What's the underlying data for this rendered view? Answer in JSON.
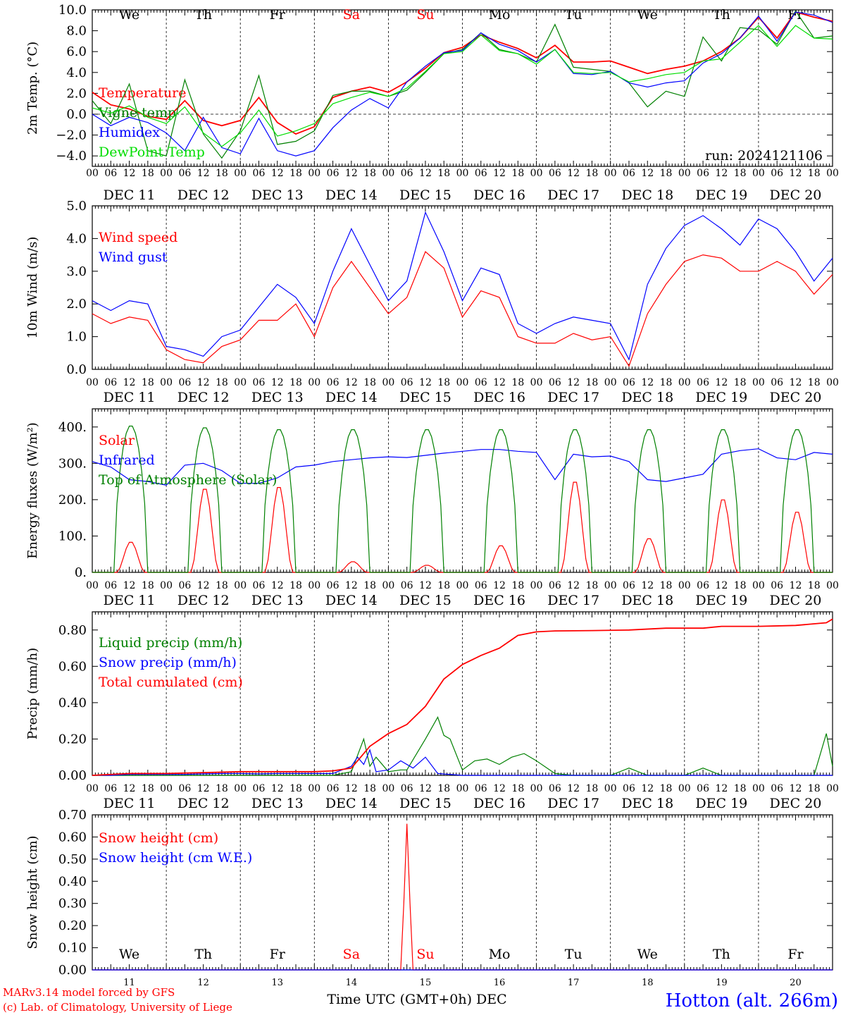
{
  "run_label": "run: 2024121106",
  "footer": {
    "model": "MARv3.14 model forced by GFS",
    "lab": "(c) Lab. of Climatology, University of Liege",
    "xlabel": "Time UTC (GMT+0h) DEC",
    "station": "Hotton (alt. 266m)"
  },
  "days": [
    {
      "dow": "We",
      "date": "DEC 11",
      "num": "11",
      "weekend": false
    },
    {
      "dow": "Th",
      "date": "DEC 12",
      "num": "12",
      "weekend": false
    },
    {
      "dow": "Fr",
      "date": "DEC 13",
      "num": "13",
      "weekend": false
    },
    {
      "dow": "Sa",
      "date": "DEC 14",
      "num": "14",
      "weekend": true
    },
    {
      "dow": "Su",
      "date": "DEC 15",
      "num": "15",
      "weekend": true
    },
    {
      "dow": "Mo",
      "date": "DEC 16",
      "num": "16",
      "weekend": false
    },
    {
      "dow": "Tu",
      "date": "DEC 17",
      "num": "17",
      "weekend": false
    },
    {
      "dow": "We",
      "date": "DEC 18",
      "num": "18",
      "weekend": false
    },
    {
      "dow": "Th",
      "date": "DEC 19",
      "num": "19",
      "weekend": false
    },
    {
      "dow": "Fr",
      "date": "DEC 20",
      "num": "20",
      "weekend": false
    }
  ],
  "hour_labels": [
    "00",
    "06",
    "12",
    "18"
  ],
  "last_hour_label": "00",
  "colors": {
    "red": "#ff0000",
    "green": "#008000",
    "blue": "#0000ff",
    "lightgreen": "#00dd00",
    "weekend": "#ff0000",
    "station": "#0000ff",
    "footer": "#ff0000"
  },
  "chart_data": [
    {
      "type": "line",
      "ylabel": "2m Temp. (°C)",
      "ylim": [
        -5,
        10
      ],
      "yticks": [
        -4,
        -2,
        0,
        2,
        4,
        6,
        8,
        10
      ],
      "ytick_labels": [
        "−4.0",
        "−2.0",
        "0.0",
        "2.0",
        "4.0",
        "6.0",
        "8.0",
        "10.0"
      ],
      "zero_line": true,
      "x_unit": "hours since DEC 11 00 UTC",
      "series": [
        {
          "name": "Temperature",
          "color": "#ff0000",
          "x": [
            0,
            6,
            12,
            18,
            24,
            30,
            36,
            42,
            48,
            54,
            60,
            66,
            72,
            78,
            84,
            90,
            96,
            102,
            108,
            114,
            120,
            126,
            132,
            138,
            144,
            150,
            156,
            162,
            168,
            174,
            180,
            186,
            192,
            198,
            204,
            210,
            216,
            222,
            228,
            234,
            240
          ],
          "y": [
            2.1,
            0.9,
            0.5,
            -0.2,
            -0.5,
            1.3,
            -0.6,
            -1.1,
            -0.6,
            1.6,
            -0.8,
            -1.9,
            -1.2,
            1.6,
            2.2,
            2.6,
            2.1,
            3.1,
            4.4,
            5.9,
            6.4,
            7.6,
            6.9,
            6.3,
            5.4,
            6.6,
            5.0,
            5.0,
            5.1,
            4.5,
            3.9,
            4.3,
            4.6,
            5.1,
            6.0,
            7.3,
            9.3,
            7.3,
            9.8,
            9.3,
            8.9
          ]
        },
        {
          "name": "Vigne temp",
          "color": "#008000",
          "x": [
            0,
            6,
            12,
            18,
            24,
            30,
            36,
            42,
            48,
            54,
            60,
            66,
            72,
            78,
            84,
            90,
            96,
            102,
            108,
            114,
            120,
            126,
            132,
            138,
            144,
            150,
            156,
            162,
            168,
            174,
            180,
            186,
            192,
            198,
            204,
            210,
            216,
            222,
            228,
            234,
            240
          ],
          "y": [
            1.3,
            -0.9,
            2.9,
            -3.5,
            -4.0,
            3.3,
            -1.9,
            -4.2,
            -1.6,
            3.7,
            -2.9,
            -2.6,
            -1.6,
            1.8,
            2.2,
            2.2,
            1.7,
            2.3,
            4.0,
            5.8,
            6.2,
            7.8,
            6.2,
            5.8,
            5.0,
            8.6,
            4.5,
            4.3,
            4.1,
            3.0,
            0.7,
            2.2,
            1.7,
            7.4,
            5.1,
            8.3,
            8.1,
            6.7,
            9.9,
            7.3,
            7.5
          ]
        },
        {
          "name": "Humidex",
          "color": "#0000ff",
          "x": [
            0,
            6,
            12,
            18,
            24,
            30,
            36,
            42,
            48,
            54,
            60,
            66,
            72,
            78,
            84,
            90,
            96,
            102,
            108,
            114,
            120,
            126,
            132,
            138,
            144,
            150,
            156,
            162,
            168,
            174,
            180,
            186,
            192,
            198,
            204,
            210,
            216,
            222,
            228,
            234,
            240
          ],
          "y": [
            0.0,
            -1.1,
            -0.3,
            -0.8,
            -1.8,
            -3.5,
            -0.3,
            -3.2,
            -3.8,
            -0.4,
            -3.5,
            -4.0,
            -3.5,
            -1.3,
            0.4,
            1.5,
            0.6,
            3.1,
            4.6,
            5.9,
            6.1,
            7.8,
            6.7,
            6.1,
            5.0,
            6.2,
            3.9,
            3.8,
            4.1,
            3.0,
            2.6,
            3.0,
            3.2,
            4.9,
            5.8,
            7.3,
            9.4,
            7.0,
            9.8,
            9.5,
            8.8
          ]
        },
        {
          "name": "DewPoint Temp",
          "color": "#00dd00",
          "x": [
            0,
            6,
            12,
            18,
            24,
            30,
            36,
            42,
            48,
            54,
            60,
            66,
            72,
            78,
            84,
            90,
            96,
            102,
            108,
            114,
            120,
            126,
            132,
            138,
            144,
            150,
            156,
            162,
            168,
            174,
            180,
            186,
            192,
            198,
            204,
            210,
            216,
            222,
            228,
            234,
            240
          ],
          "y": [
            0.6,
            0.1,
            0.8,
            -0.3,
            -0.9,
            0.7,
            -1.8,
            -3.1,
            -1.8,
            0.4,
            -2.1,
            -1.6,
            -0.9,
            1.0,
            1.6,
            2.1,
            1.7,
            2.5,
            4.1,
            5.8,
            6.0,
            7.6,
            6.1,
            5.8,
            4.8,
            6.2,
            4.0,
            3.9,
            4.0,
            3.1,
            3.4,
            3.8,
            4.0,
            5.1,
            5.3,
            6.9,
            8.5,
            6.5,
            8.5,
            7.3,
            7.2
          ]
        }
      ]
    },
    {
      "type": "line",
      "ylabel": "10m Wind (m/s)",
      "ylim": [
        0,
        5
      ],
      "yticks": [
        0,
        1,
        2,
        3,
        4,
        5
      ],
      "ytick_labels": [
        "0.0",
        "1.0",
        "2.0",
        "3.0",
        "4.0",
        "5.0"
      ],
      "x_unit": "hours since DEC 11 00 UTC",
      "series": [
        {
          "name": "Wind speed",
          "color": "#ff0000",
          "x": [
            0,
            6,
            12,
            18,
            24,
            30,
            36,
            42,
            48,
            54,
            60,
            66,
            72,
            78,
            84,
            90,
            96,
            102,
            108,
            114,
            120,
            126,
            132,
            138,
            144,
            150,
            156,
            162,
            168,
            174,
            180,
            186,
            192,
            198,
            204,
            210,
            216,
            222,
            228,
            234,
            240
          ],
          "y": [
            1.7,
            1.4,
            1.6,
            1.5,
            0.6,
            0.3,
            0.2,
            0.7,
            0.9,
            1.5,
            1.5,
            2.0,
            1.0,
            2.5,
            3.3,
            2.5,
            1.7,
            2.2,
            3.6,
            3.1,
            1.6,
            2.4,
            2.2,
            1.0,
            0.8,
            0.8,
            1.1,
            0.9,
            1.0,
            0.1,
            1.7,
            2.6,
            3.3,
            3.5,
            3.4,
            3.0,
            3.0,
            3.3,
            3.0,
            2.3,
            2.9
          ]
        },
        {
          "name": "Wind gust",
          "color": "#0000ff",
          "x": [
            0,
            6,
            12,
            18,
            24,
            30,
            36,
            42,
            48,
            54,
            60,
            66,
            72,
            78,
            84,
            90,
            96,
            102,
            108,
            114,
            120,
            126,
            132,
            138,
            144,
            150,
            156,
            162,
            168,
            174,
            180,
            186,
            192,
            198,
            204,
            210,
            216,
            222,
            228,
            234,
            240
          ],
          "y": [
            2.1,
            1.8,
            2.1,
            2.0,
            0.7,
            0.6,
            0.4,
            1.0,
            1.2,
            1.9,
            2.6,
            2.2,
            1.4,
            3.0,
            4.3,
            3.2,
            2.1,
            2.7,
            4.8,
            3.6,
            2.1,
            3.1,
            2.9,
            1.4,
            1.1,
            1.4,
            1.6,
            1.5,
            1.4,
            0.3,
            2.6,
            3.7,
            4.4,
            4.7,
            4.3,
            3.8,
            4.6,
            4.3,
            3.6,
            2.7,
            3.4
          ]
        }
      ]
    },
    {
      "type": "line",
      "ylabel": "Energy fluxes (W/m²)",
      "ylim": [
        0,
        450
      ],
      "yticks": [
        0,
        100,
        200,
        300,
        400
      ],
      "ytick_labels": [
        "0.",
        "100.",
        "200.",
        "300.",
        "400."
      ],
      "x_unit": "hours since DEC 11 00 UTC",
      "series": [
        {
          "name": "Solar",
          "color": "#ff0000",
          "daily_peak_hour": 12.5,
          "daily_peak": [
            85,
            235,
            240,
            30,
            20,
            75,
            255,
            95,
            205,
            170
          ]
        },
        {
          "name": "Infrared",
          "color": "#0000ff",
          "x": [
            0,
            6,
            12,
            18,
            24,
            30,
            36,
            42,
            48,
            54,
            60,
            66,
            72,
            78,
            84,
            90,
            96,
            102,
            108,
            114,
            120,
            126,
            132,
            138,
            144,
            150,
            156,
            162,
            168,
            174,
            180,
            186,
            192,
            198,
            204,
            210,
            216,
            222,
            228,
            234,
            240
          ],
          "y": [
            305,
            290,
            255,
            250,
            240,
            295,
            300,
            280,
            245,
            245,
            260,
            290,
            295,
            305,
            310,
            315,
            318,
            316,
            322,
            328,
            333,
            338,
            338,
            333,
            330,
            255,
            325,
            318,
            320,
            305,
            255,
            250,
            260,
            270,
            325,
            335,
            340,
            315,
            310,
            330,
            325
          ]
        },
        {
          "name": "Top of Atmosphere (Solar)",
          "color": "#008000",
          "daily_peak_hour": 12.5,
          "daily_peak": [
            405,
            400,
            395,
            395,
            395,
            395,
            395,
            395,
            395,
            395
          ]
        }
      ]
    },
    {
      "type": "line",
      "ylabel": "Precip (mm/h)",
      "ylim": [
        0,
        0.9
      ],
      "yticks": [
        0,
        0.2,
        0.4,
        0.6,
        0.8
      ],
      "ytick_labels": [
        "0.00",
        "0.20",
        "0.40",
        "0.60",
        "0.80"
      ],
      "x_unit": "hours since DEC 11 00 UTC",
      "series": [
        {
          "name": "Liquid precip (mm/h)",
          "color": "#008000",
          "x": [
            0,
            6,
            12,
            18,
            24,
            30,
            36,
            42,
            48,
            54,
            60,
            66,
            72,
            78,
            84,
            88,
            90,
            92,
            96,
            100,
            102,
            108,
            112,
            114,
            116,
            120,
            124,
            128,
            132,
            136,
            140,
            144,
            150,
            156,
            162,
            168,
            174,
            180,
            186,
            192,
            198,
            204,
            210,
            216,
            222,
            228,
            234,
            238,
            240
          ],
          "y": [
            0,
            0,
            0,
            0,
            0,
            0,
            0,
            0,
            0,
            0,
            0,
            0,
            0,
            0,
            0.02,
            0.2,
            0.05,
            0.1,
            0.02,
            0.03,
            0.03,
            0.2,
            0.32,
            0.22,
            0.2,
            0.03,
            0.08,
            0.09,
            0.06,
            0.1,
            0.12,
            0.08,
            0.01,
            0,
            0,
            0,
            0.04,
            0,
            0,
            0,
            0.04,
            0,
            0,
            0,
            0,
            0,
            0,
            0.23,
            0.05
          ]
        },
        {
          "name": "Snow precip (mm/h)",
          "color": "#0000ff",
          "x": [
            0,
            6,
            12,
            18,
            24,
            30,
            36,
            42,
            48,
            54,
            60,
            66,
            72,
            78,
            84,
            86,
            88,
            90,
            92,
            96,
            100,
            104,
            108,
            112,
            120,
            240
          ],
          "y": [
            0,
            0,
            0.005,
            0.005,
            0.005,
            0.005,
            0.008,
            0.01,
            0.01,
            0.008,
            0.01,
            0.01,
            0.01,
            0.01,
            0.05,
            0.1,
            0.06,
            0.14,
            0.02,
            0.03,
            0.08,
            0.04,
            0.1,
            0.01,
            0,
            0
          ]
        },
        {
          "name": "Total cumulated (cm)",
          "color": "#ff0000",
          "x": [
            0,
            12,
            24,
            36,
            48,
            60,
            72,
            78,
            84,
            90,
            96,
            102,
            108,
            114,
            120,
            126,
            132,
            138,
            144,
            150,
            162,
            174,
            186,
            198,
            204,
            216,
            228,
            238,
            240
          ],
          "y": [
            0,
            0.01,
            0.01,
            0.015,
            0.02,
            0.02,
            0.02,
            0.025,
            0.04,
            0.16,
            0.23,
            0.28,
            0.38,
            0.53,
            0.61,
            0.66,
            0.7,
            0.77,
            0.79,
            0.795,
            0.797,
            0.8,
            0.81,
            0.81,
            0.82,
            0.82,
            0.825,
            0.84,
            0.86
          ]
        }
      ]
    },
    {
      "type": "line",
      "ylabel": "Snow height (cm)",
      "ylim": [
        0,
        0.7
      ],
      "yticks": [
        0,
        0.1,
        0.2,
        0.3,
        0.4,
        0.5,
        0.6,
        0.7
      ],
      "ytick_labels": [
        "0.00",
        "0.10",
        "0.20",
        "0.30",
        "0.40",
        "0.50",
        "0.60",
        "0.70"
      ],
      "x_unit": "hours since DEC 11 00 UTC",
      "series": [
        {
          "name": "Snow height (cm)",
          "color": "#ff0000",
          "x": [
            0,
            100,
            101,
            102,
            103,
            104,
            240
          ],
          "y": [
            0,
            0,
            0.3,
            0.66,
            0.3,
            0,
            0
          ]
        },
        {
          "name": "Snow height (cm W.E.)",
          "color": "#0000ff",
          "x": [
            0,
            240
          ],
          "y": [
            0,
            0
          ]
        }
      ]
    }
  ]
}
